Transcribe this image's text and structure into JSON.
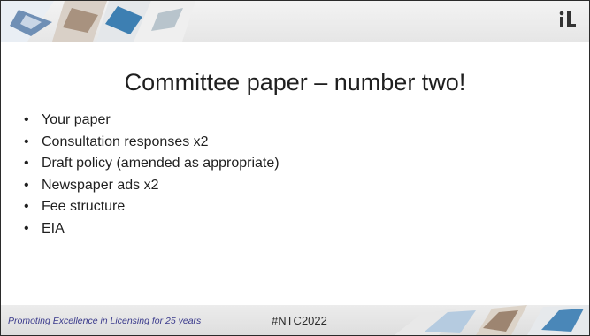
{
  "slide": {
    "title": "Committee paper – number two!",
    "bullets": [
      "Your paper",
      "Consultation responses x2",
      "Draft policy (amended as appropriate)",
      "Newspaper ads x2",
      "Fee structure",
      "EIA"
    ]
  },
  "footer": {
    "tagline": "Promoting Excellence in Licensing for 25 years",
    "hashtag": "#NTC2022"
  },
  "header": {
    "logo_icon": "il-logo-icon"
  },
  "colors": {
    "tagline": "#3a3a8c",
    "band": "#e6e6e6"
  }
}
